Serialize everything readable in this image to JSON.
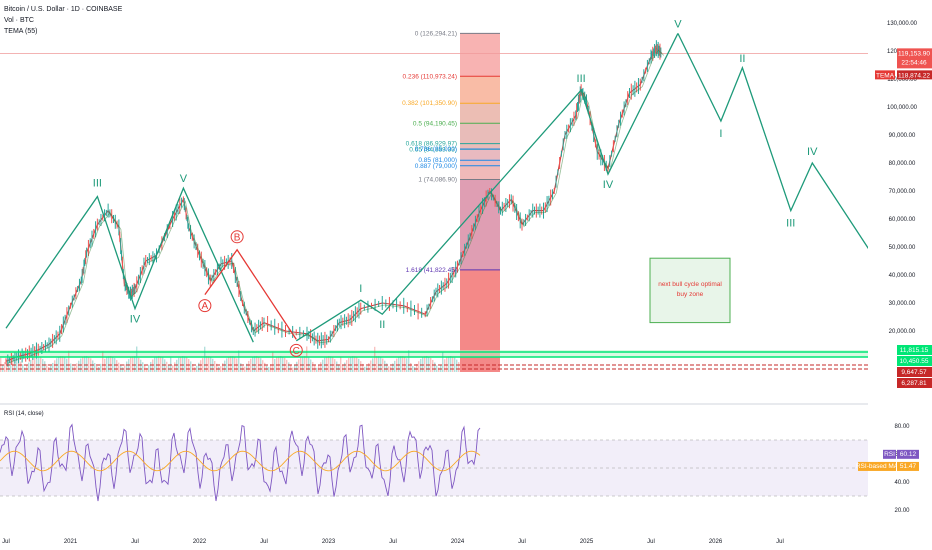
{
  "header": {
    "symbol": "Bitcoin / U.S. Dollar · 1D · COINBASE",
    "vol": "Vol · BTC",
    "tema": "TEMA (55)"
  },
  "colors": {
    "up": "#26a69a",
    "down": "#ef5350",
    "wave": "#1e9a7a",
    "abc": "#e53935",
    "rsi": "#7e57c2",
    "rsi_ma": "#f9a825",
    "green_band": "#00e676",
    "zone": "#4caf50"
  },
  "chart_data": [
    {
      "type": "line",
      "name": "price",
      "x_ticks": [
        "Jul",
        "2021",
        "Jul",
        "2022",
        "Jul",
        "2023",
        "Jul",
        "2024",
        "Jul",
        "2025",
        "Jul",
        "2026",
        "Jul"
      ],
      "x_tick_months": [
        0,
        6,
        12,
        18,
        24,
        30,
        36,
        42,
        48,
        54,
        60,
        66,
        72
      ],
      "y_ticks": [
        130000,
        120000,
        110000,
        100000,
        90000,
        80000,
        70000,
        60000,
        50000,
        40000,
        30000,
        20000
      ],
      "y_tick_labels": [
        "130,000.00",
        "120,000.00",
        "110,000.00",
        "100,000.00",
        "90,000.00",
        "80,000.00",
        "70,000.00",
        "60,000.00",
        "50,000.00",
        "40,000.00",
        "30,000.00",
        "20,000.00"
      ],
      "ylim": [
        0,
        133000
      ],
      "xlim_months": [
        0,
        74
      ],
      "price_path": [
        [
          0,
          9200
        ],
        [
          1,
          10800
        ],
        [
          2,
          11700
        ],
        [
          3,
          13300
        ],
        [
          4,
          15200
        ],
        [
          5,
          19000
        ],
        [
          6,
          29000
        ],
        [
          7,
          38000
        ],
        [
          7.5,
          48000
        ],
        [
          8.5,
          58000
        ],
        [
          9.5,
          63000
        ],
        [
          10.5,
          57000
        ],
        [
          11,
          37000
        ],
        [
          11.5,
          33000
        ],
        [
          12,
          35000
        ],
        [
          13,
          45000
        ],
        [
          14,
          47000
        ],
        [
          15.5,
          60000
        ],
        [
          16.5,
          67000
        ],
        [
          17,
          57000
        ],
        [
          18,
          47000
        ],
        [
          19,
          38000
        ],
        [
          20,
          44000
        ],
        [
          21,
          45000
        ],
        [
          22,
          30000
        ],
        [
          23,
          20000
        ],
        [
          24,
          23000
        ],
        [
          26,
          20000
        ],
        [
          28,
          19000
        ],
        [
          29,
          16500
        ],
        [
          30,
          17000
        ],
        [
          31,
          23000
        ],
        [
          32,
          24000
        ],
        [
          33,
          28000
        ],
        [
          35,
          30000
        ],
        [
          37,
          29000
        ],
        [
          39,
          26000
        ],
        [
          40,
          34000
        ],
        [
          41,
          37000
        ],
        [
          42,
          43000
        ],
        [
          43,
          52000
        ],
        [
          44,
          62000
        ],
        [
          45,
          70000
        ],
        [
          46,
          63000
        ],
        [
          47,
          67000
        ],
        [
          48,
          58000
        ],
        [
          49,
          63000
        ],
        [
          50,
          63000
        ],
        [
          51,
          70000
        ],
        [
          52,
          90000
        ],
        [
          53,
          97000
        ],
        [
          53.5,
          106000
        ],
        [
          54,
          102000
        ],
        [
          55,
          84000
        ],
        [
          56,
          78000
        ],
        [
          57,
          94000
        ],
        [
          58,
          105000
        ],
        [
          59,
          108000
        ],
        [
          60,
          118000
        ],
        [
          60.5,
          121000
        ],
        [
          61,
          119153
        ]
      ],
      "elliott_primary": {
        "points": [
          [
            0,
            21000
          ],
          [
            8.5,
            68000
          ],
          [
            12,
            28000
          ],
          [
            16.5,
            71000
          ],
          [
            23,
            16000
          ]
        ],
        "labels": [
          "III",
          "IV",
          "V"
        ]
      },
      "abc_correction": {
        "labels": [
          "A",
          "B",
          "C"
        ],
        "points": [
          [
            18.5,
            33000
          ],
          [
            21.5,
            49000
          ],
          [
            27,
            17000
          ]
        ]
      },
      "elliott_new": {
        "points": [
          [
            27,
            16500
          ],
          [
            33,
            31000
          ],
          [
            35,
            26000
          ],
          [
            53.5,
            106000
          ],
          [
            56,
            76000
          ],
          [
            62.5,
            126294
          ]
        ],
        "labels": [
          "I",
          "II",
          "III",
          "IV",
          "V"
        ]
      },
      "projection": {
        "points": [
          [
            62.5,
            126294
          ],
          [
            66.5,
            95000
          ],
          [
            68.5,
            114000
          ],
          [
            73,
            63000
          ],
          [
            75,
            80000
          ],
          [
            81.5,
            42000
          ]
        ],
        "labels": [
          "I",
          "II",
          "III",
          "IV"
        ]
      },
      "fib_levels": [
        {
          "ratio": "0",
          "value": 126294.21,
          "label": "0 (126,294.21)",
          "color": "#787b86"
        },
        {
          "ratio": "0.236",
          "value": 110973.24,
          "label": "0.236 (110,973.24)",
          "color": "#e53935"
        },
        {
          "ratio": "0.382",
          "value": 101350.9,
          "label": "0.382 (101,350.90)",
          "color": "#f9a825"
        },
        {
          "ratio": "0.5",
          "value": 94190.45,
          "label": "0.5 (94,190.45)",
          "color": "#4caf50"
        },
        {
          "ratio": "0.618",
          "value": 86929.97,
          "label": "0.618 (86,929.97)",
          "color": "#26a69a"
        },
        {
          "ratio": "0.65",
          "value": 84889.33,
          "label": "0.65 (84,889.33)",
          "color": "#26a69a"
        },
        {
          "ratio": "0.786",
          "value": 85000,
          "label": "0.786 (85,000)",
          "color": "#1e88e5"
        },
        {
          "ratio": "0.85",
          "value": 81000,
          "label": "0.85 (81,000)",
          "color": "#1e88e5"
        },
        {
          "ratio": "0.887",
          "value": 79000,
          "label": "0.887 (79,000)",
          "color": "#1e88e5"
        },
        {
          "ratio": "1",
          "value": 74086.9,
          "label": "1 (74,086.90)",
          "color": "#787b86"
        },
        {
          "ratio": "1.618",
          "value": 41822.45,
          "label": "1.618 (41,822.45)",
          "color": "#5e35b1"
        }
      ],
      "buy_zone": {
        "label": "next bull cycle optimal buy zone",
        "top": 46000,
        "bottom": 23000,
        "x_start": 79.5,
        "x_end": 85
      },
      "support_lines": [
        {
          "value": 11815.15,
          "label": "11,815.15",
          "color": "#00e676"
        },
        {
          "value": 10450.55,
          "label": "10,450.55",
          "color": "#00e676"
        },
        {
          "value": 9647.57,
          "label": "9,647.57",
          "color": "#c62828"
        },
        {
          "value": 6287.81,
          "label": "6,287.81",
          "color": "#c62828"
        }
      ],
      "current_price": {
        "value": 119153.9,
        "label": "119,153.90",
        "sublabel": "22:54:46"
      },
      "tema_value": {
        "value": 118874.22,
        "label": "118,874.22",
        "tag": "TEMA"
      }
    },
    {
      "type": "line",
      "name": "RSI",
      "title": "RSI (14, close)",
      "y_ticks": [
        80,
        60,
        40,
        20
      ],
      "y_tick_labels": [
        "80.00",
        "60.00",
        "40.00",
        "20.00"
      ],
      "ylim": [
        14,
        92
      ],
      "overbought": 70,
      "oversold": 30,
      "rsi_value": {
        "value": 60.12,
        "label": "60.12",
        "tag": "RSI"
      },
      "ma_value": {
        "value": 51.47,
        "label": "51.47",
        "tag": "RSI-based MA"
      }
    }
  ]
}
